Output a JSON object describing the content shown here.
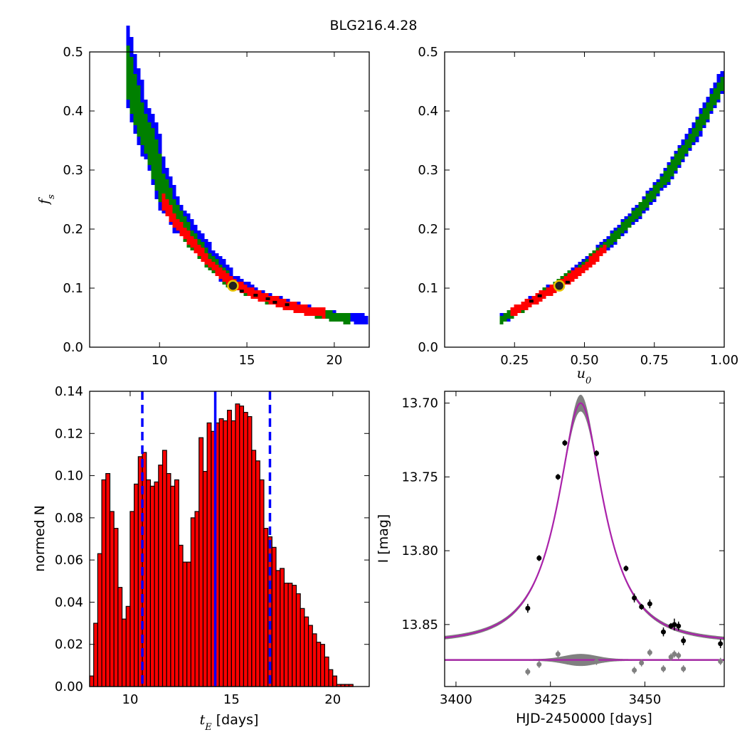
{
  "figure": {
    "title": "BLG216.4.28"
  },
  "chart_data": [
    {
      "type": "heatmap",
      "panel": "tE vs fs",
      "xlabel": "",
      "ylabel": "f_s",
      "xlim": [
        6,
        22
      ],
      "ylim": [
        0.0,
        0.5
      ],
      "xticks": [
        10,
        15,
        20
      ],
      "yticks": [
        0.0,
        0.1,
        0.2,
        0.3,
        0.4,
        0.5
      ],
      "xtick_labels": [
        "10",
        "15",
        "20"
      ],
      "ytick_labels": [
        "0.0",
        "0.1",
        "0.2",
        "0.3",
        "0.4",
        "0.5"
      ],
      "bands": [
        {
          "level": "outer",
          "color": "#0000ff",
          "halfwidth": 0.62,
          "curve": [
            [
              8.1,
              0.475
            ],
            [
              8.6,
              0.42
            ],
            [
              9.1,
              0.37
            ],
            [
              9.6,
              0.33
            ],
            [
              10.2,
              0.27
            ],
            [
              11,
              0.22
            ],
            [
              12,
              0.18
            ],
            [
              13,
              0.145
            ],
            [
              14.2,
              0.11
            ],
            [
              15.5,
              0.09
            ],
            [
              17,
              0.075
            ],
            [
              18.5,
              0.063
            ],
            [
              20,
              0.052
            ],
            [
              21.8,
              0.047
            ]
          ]
        },
        {
          "level": "middle",
          "color": "#008000",
          "halfwidth": 0.4,
          "curve": [
            [
              8.3,
              0.465
            ],
            [
              8.7,
              0.42
            ],
            [
              9.2,
              0.37
            ],
            [
              9.7,
              0.33
            ],
            [
              10.3,
              0.27
            ],
            [
              11,
              0.225
            ],
            [
              12,
              0.18
            ],
            [
              13,
              0.145
            ],
            [
              14.2,
              0.11
            ],
            [
              15.5,
              0.09
            ],
            [
              17,
              0.075
            ],
            [
              18.5,
              0.063
            ],
            [
              20,
              0.052
            ],
            [
              21,
              0.048
            ]
          ]
        },
        {
          "level": "inner",
          "color": "#ff0000",
          "halfwidth": 0.24,
          "curve": [
            [
              10.3,
              0.245
            ],
            [
              11,
              0.21
            ],
            [
              12,
              0.175
            ],
            [
              13,
              0.14
            ],
            [
              14.2,
              0.11
            ],
            [
              15.5,
              0.09
            ],
            [
              17,
              0.075
            ],
            [
              18.5,
              0.062
            ],
            [
              19.6,
              0.058
            ]
          ]
        }
      ],
      "best_points": [
        [
          14.7,
          0.095
        ],
        [
          15.5,
          0.088
        ],
        [
          16.2,
          0.082
        ],
        [
          16.6,
          0.076
        ],
        [
          17.3,
          0.072
        ]
      ],
      "best_fit_marker": {
        "x": 14.2,
        "y": 0.104
      }
    },
    {
      "type": "heatmap",
      "panel": "u0 vs fs",
      "xlabel": "u_0",
      "ylabel": "",
      "xlim": [
        0.0,
        1.0
      ],
      "ylim": [
        0.0,
        0.5
      ],
      "xticks": [
        0.25,
        0.5,
        0.75,
        1.0
      ],
      "yticks": [
        0.0,
        0.1,
        0.2,
        0.3,
        0.4,
        0.5
      ],
      "xtick_labels": [
        "0.25",
        "0.50",
        "0.75",
        "1.00"
      ],
      "ytick_labels": [
        "0.0",
        "0.1",
        "0.2",
        "0.3",
        "0.4",
        "0.5"
      ],
      "bands": [
        {
          "level": "outer",
          "color": "#0000ff",
          "halfwidth": 0.022,
          "curve": [
            [
              0.2,
              0.047
            ],
            [
              0.3,
              0.075
            ],
            [
              0.4,
              0.105
            ],
            [
              0.5,
              0.14
            ],
            [
              0.6,
              0.185
            ],
            [
              0.7,
              0.235
            ],
            [
              0.8,
              0.295
            ],
            [
              0.9,
              0.37
            ],
            [
              1.0,
              0.46
            ]
          ]
        },
        {
          "level": "middle",
          "color": "#008000",
          "halfwidth": 0.014,
          "curve": [
            [
              0.2,
              0.047
            ],
            [
              0.3,
              0.075
            ],
            [
              0.4,
              0.105
            ],
            [
              0.5,
              0.14
            ],
            [
              0.6,
              0.185
            ],
            [
              0.7,
              0.235
            ],
            [
              0.8,
              0.295
            ],
            [
              0.9,
              0.37
            ],
            [
              1.0,
              0.455
            ]
          ]
        },
        {
          "level": "inner",
          "color": "#ff0000",
          "halfwidth": 0.008,
          "curve": [
            [
              0.24,
              0.06
            ],
            [
              0.3,
              0.075
            ],
            [
              0.4,
              0.102
            ],
            [
              0.5,
              0.135
            ],
            [
              0.58,
              0.17
            ]
          ]
        }
      ],
      "best_points": [
        [
          0.31,
          0.078
        ],
        [
          0.34,
          0.087
        ],
        [
          0.44,
          0.11
        ]
      ],
      "best_fit_marker": {
        "x": 0.41,
        "y": 0.104
      }
    },
    {
      "type": "bar",
      "panel": "tE histogram",
      "xlabel": "[days]",
      "xlabel_math": "t_E",
      "ylabel": "normed N",
      "xlim": [
        8.0,
        21.8
      ],
      "ylim": [
        0.0,
        0.14
      ],
      "xticks": [
        10,
        15,
        20
      ],
      "yticks": [
        0.0,
        0.02,
        0.04,
        0.06,
        0.08,
        0.1,
        0.12,
        0.14
      ],
      "xtick_labels": [
        "10",
        "15",
        "20"
      ],
      "ytick_labels": [
        "0.00",
        "0.02",
        "0.04",
        "0.06",
        "0.08",
        "0.10",
        "0.12",
        "0.14"
      ],
      "bar_color": "#ff0000",
      "bin_start": 8.0,
      "bin_width": 0.2,
      "values": [
        0.005,
        0.03,
        0.063,
        0.098,
        0.101,
        0.083,
        0.075,
        0.047,
        0.032,
        0.038,
        0.083,
        0.096,
        0.109,
        0.111,
        0.098,
        0.095,
        0.097,
        0.105,
        0.112,
        0.101,
        0.095,
        0.098,
        0.067,
        0.059,
        0.059,
        0.08,
        0.083,
        0.118,
        0.102,
        0.125,
        0.121,
        0.125,
        0.127,
        0.126,
        0.131,
        0.126,
        0.134,
        0.133,
        0.13,
        0.128,
        0.112,
        0.107,
        0.098,
        0.075,
        0.071,
        0.066,
        0.055,
        0.056,
        0.049,
        0.049,
        0.048,
        0.044,
        0.037,
        0.033,
        0.029,
        0.025,
        0.021,
        0.02,
        0.014,
        0.008,
        0.005,
        0.001,
        0.001,
        0.001,
        0.001
      ],
      "vlines": [
        {
          "x": 10.6,
          "style": "dashed",
          "color": "#0000ff"
        },
        {
          "x": 14.2,
          "style": "solid",
          "color": "#0000ff"
        },
        {
          "x": 16.9,
          "style": "dashed",
          "color": "#0000ff"
        }
      ]
    },
    {
      "type": "scatter",
      "panel": "light curve",
      "xlabel": "HJD-2450000 [days]",
      "ylabel": "I [mag]",
      "xlim": [
        3397,
        3471
      ],
      "ylim": [
        13.892,
        13.692
      ],
      "y_inverted": true,
      "xticks": [
        3400,
        3425,
        3450
      ],
      "yticks": [
        13.7,
        13.75,
        13.8,
        13.85
      ],
      "xtick_labels": [
        "3400",
        "3425",
        "3450"
      ],
      "ytick_labels": [
        "13.70",
        "13.75",
        "13.80",
        "13.85"
      ],
      "model": {
        "color": "#aa22aa",
        "baseline": 13.862,
        "peak": 13.7,
        "t0": 3433,
        "tE": 14.2,
        "u0": 0.41,
        "fs": 0.104,
        "band_color": "#808080"
      },
      "points": [
        {
          "x": 3419,
          "y": 13.839,
          "err": 0.003
        },
        {
          "x": 3422,
          "y": 13.805,
          "err": 0.002
        },
        {
          "x": 3427,
          "y": 13.75,
          "err": 0.002
        },
        {
          "x": 3428.8,
          "y": 13.727,
          "err": 0.002
        },
        {
          "x": 3437.2,
          "y": 13.734,
          "err": 0.002
        },
        {
          "x": 3445,
          "y": 13.812,
          "err": 0.002
        },
        {
          "x": 3447.2,
          "y": 13.832,
          "err": 0.003
        },
        {
          "x": 3449.1,
          "y": 13.838,
          "err": 0.002
        },
        {
          "x": 3451.3,
          "y": 13.836,
          "err": 0.003
        },
        {
          "x": 3454.9,
          "y": 13.855,
          "err": 0.003
        },
        {
          "x": 3456.9,
          "y": 13.851,
          "err": 0.002
        },
        {
          "x": 3457.8,
          "y": 13.85,
          "err": 0.004
        },
        {
          "x": 3458.9,
          "y": 13.851,
          "err": 0.003
        },
        {
          "x": 3460.2,
          "y": 13.861,
          "err": 0.003
        },
        {
          "x": 3470,
          "y": 13.863,
          "err": 0.003
        }
      ],
      "residual_baseline": 13.874,
      "residual_points": [
        {
          "x": 3419,
          "y": 13.882
        },
        {
          "x": 3422,
          "y": 13.877
        },
        {
          "x": 3427,
          "y": 13.87
        },
        {
          "x": 3437.2,
          "y": 13.875
        },
        {
          "x": 3447.2,
          "y": 13.881
        },
        {
          "x": 3449.1,
          "y": 13.876
        },
        {
          "x": 3451.3,
          "y": 13.869
        },
        {
          "x": 3454.9,
          "y": 13.88
        },
        {
          "x": 3456.9,
          "y": 13.872
        },
        {
          "x": 3457.8,
          "y": 13.87
        },
        {
          "x": 3458.9,
          "y": 13.871
        },
        {
          "x": 3460.2,
          "y": 13.88
        },
        {
          "x": 3470,
          "y": 13.875
        }
      ]
    }
  ]
}
